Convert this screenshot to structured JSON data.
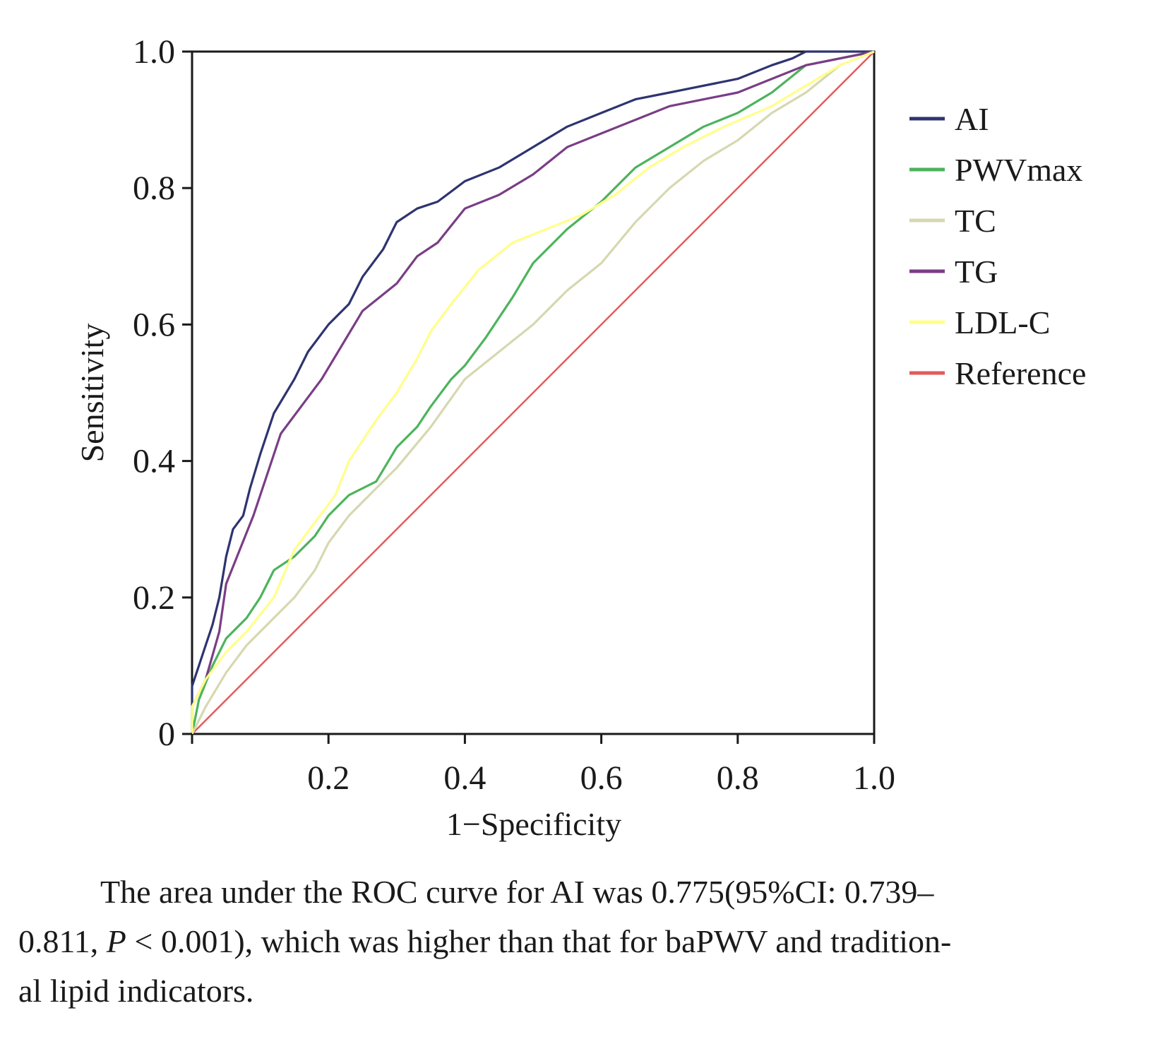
{
  "chart_data": {
    "type": "line",
    "title": "",
    "xlabel": "1−Specificity",
    "ylabel": "Sensitivity",
    "xlim": [
      0,
      1
    ],
    "ylim": [
      0,
      1
    ],
    "grid": false,
    "legend_position": "right",
    "x_ticks": [
      "0.2",
      "0.4",
      "0.6",
      "0.8",
      "1.0"
    ],
    "y_ticks": [
      "0",
      "0.2",
      "0.4",
      "0.6",
      "0.8",
      "1.0"
    ],
    "series": [
      {
        "name": "AI",
        "color": "#2e3470",
        "points": [
          [
            0,
            0
          ],
          [
            0,
            0.07
          ],
          [
            0.01,
            0.1
          ],
          [
            0.02,
            0.13
          ],
          [
            0.03,
            0.16
          ],
          [
            0.04,
            0.2
          ],
          [
            0.05,
            0.26
          ],
          [
            0.06,
            0.3
          ],
          [
            0.075,
            0.32
          ],
          [
            0.085,
            0.36
          ],
          [
            0.1,
            0.41
          ],
          [
            0.12,
            0.47
          ],
          [
            0.15,
            0.52
          ],
          [
            0.17,
            0.56
          ],
          [
            0.2,
            0.6
          ],
          [
            0.23,
            0.63
          ],
          [
            0.25,
            0.67
          ],
          [
            0.28,
            0.71
          ],
          [
            0.3,
            0.75
          ],
          [
            0.33,
            0.77
          ],
          [
            0.36,
            0.78
          ],
          [
            0.4,
            0.81
          ],
          [
            0.45,
            0.83
          ],
          [
            0.5,
            0.86
          ],
          [
            0.55,
            0.89
          ],
          [
            0.6,
            0.91
          ],
          [
            0.65,
            0.93
          ],
          [
            0.7,
            0.94
          ],
          [
            0.8,
            0.96
          ],
          [
            0.85,
            0.98
          ],
          [
            0.88,
            0.99
          ],
          [
            0.9,
            1.0
          ],
          [
            1.0,
            1.0
          ]
        ]
      },
      {
        "name": "PWVmax",
        "color": "#4db35c",
        "points": [
          [
            0,
            0
          ],
          [
            0.01,
            0.05
          ],
          [
            0.03,
            0.1
          ],
          [
            0.05,
            0.14
          ],
          [
            0.08,
            0.17
          ],
          [
            0.1,
            0.2
          ],
          [
            0.12,
            0.24
          ],
          [
            0.15,
            0.26
          ],
          [
            0.18,
            0.29
          ],
          [
            0.2,
            0.32
          ],
          [
            0.23,
            0.35
          ],
          [
            0.27,
            0.37
          ],
          [
            0.3,
            0.42
          ],
          [
            0.33,
            0.45
          ],
          [
            0.35,
            0.48
          ],
          [
            0.38,
            0.52
          ],
          [
            0.4,
            0.54
          ],
          [
            0.43,
            0.58
          ],
          [
            0.47,
            0.64
          ],
          [
            0.5,
            0.69
          ],
          [
            0.55,
            0.74
          ],
          [
            0.6,
            0.78
          ],
          [
            0.65,
            0.83
          ],
          [
            0.7,
            0.86
          ],
          [
            0.75,
            0.89
          ],
          [
            0.8,
            0.91
          ],
          [
            0.85,
            0.94
          ],
          [
            0.9,
            0.98
          ],
          [
            1.0,
            1.0
          ]
        ]
      },
      {
        "name": "TC",
        "color": "#d6d8b0",
        "points": [
          [
            0,
            0
          ],
          [
            0.02,
            0.04
          ],
          [
            0.05,
            0.09
          ],
          [
            0.08,
            0.13
          ],
          [
            0.12,
            0.17
          ],
          [
            0.15,
            0.2
          ],
          [
            0.18,
            0.24
          ],
          [
            0.2,
            0.28
          ],
          [
            0.23,
            0.32
          ],
          [
            0.27,
            0.36
          ],
          [
            0.3,
            0.39
          ],
          [
            0.35,
            0.45
          ],
          [
            0.4,
            0.52
          ],
          [
            0.45,
            0.56
          ],
          [
            0.5,
            0.6
          ],
          [
            0.55,
            0.65
          ],
          [
            0.6,
            0.69
          ],
          [
            0.65,
            0.75
          ],
          [
            0.7,
            0.8
          ],
          [
            0.75,
            0.84
          ],
          [
            0.8,
            0.87
          ],
          [
            0.85,
            0.91
          ],
          [
            0.9,
            0.94
          ],
          [
            0.95,
            0.98
          ],
          [
            1.0,
            1.0
          ]
        ]
      },
      {
        "name": "TG",
        "color": "#7a3d86",
        "points": [
          [
            0,
            0
          ],
          [
            0,
            0.04
          ],
          [
            0.02,
            0.08
          ],
          [
            0.04,
            0.15
          ],
          [
            0.05,
            0.22
          ],
          [
            0.07,
            0.27
          ],
          [
            0.09,
            0.32
          ],
          [
            0.11,
            0.38
          ],
          [
            0.13,
            0.44
          ],
          [
            0.16,
            0.48
          ],
          [
            0.19,
            0.52
          ],
          [
            0.22,
            0.57
          ],
          [
            0.25,
            0.62
          ],
          [
            0.3,
            0.66
          ],
          [
            0.33,
            0.7
          ],
          [
            0.36,
            0.72
          ],
          [
            0.4,
            0.77
          ],
          [
            0.45,
            0.79
          ],
          [
            0.5,
            0.82
          ],
          [
            0.55,
            0.86
          ],
          [
            0.6,
            0.88
          ],
          [
            0.65,
            0.9
          ],
          [
            0.7,
            0.92
          ],
          [
            0.8,
            0.94
          ],
          [
            0.85,
            0.96
          ],
          [
            0.9,
            0.98
          ],
          [
            1.0,
            1.0
          ]
        ]
      },
      {
        "name": "LDL-C",
        "color": "#ffff8a",
        "points": [
          [
            0,
            0
          ],
          [
            0,
            0.04
          ],
          [
            0.02,
            0.08
          ],
          [
            0.05,
            0.12
          ],
          [
            0.08,
            0.15
          ],
          [
            0.12,
            0.2
          ],
          [
            0.15,
            0.27
          ],
          [
            0.18,
            0.31
          ],
          [
            0.21,
            0.35
          ],
          [
            0.23,
            0.4
          ],
          [
            0.27,
            0.46
          ],
          [
            0.3,
            0.5
          ],
          [
            0.33,
            0.55
          ],
          [
            0.35,
            0.59
          ],
          [
            0.38,
            0.63
          ],
          [
            0.42,
            0.68
          ],
          [
            0.47,
            0.72
          ],
          [
            0.52,
            0.74
          ],
          [
            0.57,
            0.76
          ],
          [
            0.62,
            0.79
          ],
          [
            0.67,
            0.83
          ],
          [
            0.72,
            0.86
          ],
          [
            0.78,
            0.89
          ],
          [
            0.85,
            0.92
          ],
          [
            0.9,
            0.95
          ],
          [
            0.95,
            0.98
          ],
          [
            1.0,
            1.0
          ]
        ]
      },
      {
        "name": "Reference",
        "color": "#e35a5a",
        "points": [
          [
            0,
            0
          ],
          [
            1,
            1
          ]
        ]
      }
    ]
  },
  "caption": {
    "line1_main": "The area under the ROC curve for AI was 0.775",
    "line1_paren": "(95%CI: 0.739–",
    "line2_start": "0.811, ",
    "line2_p": "P",
    "line2_mid": " < 0.001),",
    "line2_rest": " which was higher than that for baPWV and tradition-",
    "line3": "al lipid indicators."
  }
}
